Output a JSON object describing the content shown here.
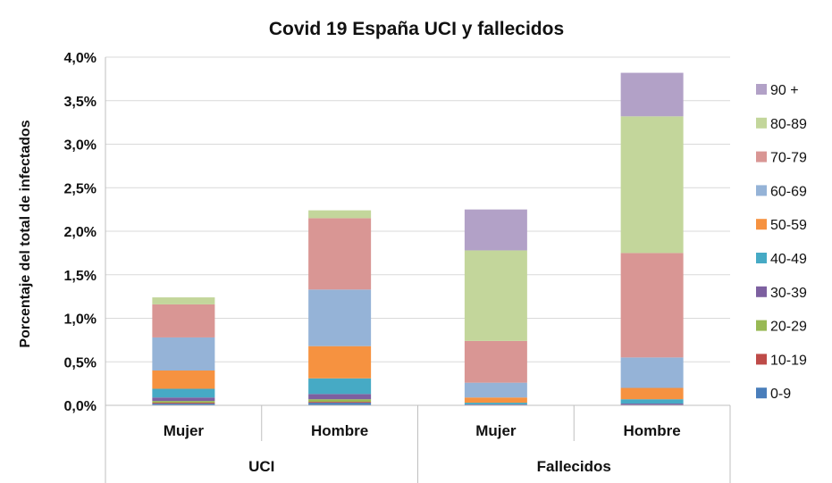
{
  "chart_data": {
    "type": "bar",
    "stacked": true,
    "title": "Covid 19 España UCI y fallecidos",
    "xlabel": "",
    "ylabel": "Porcentaje del total de infectados",
    "ylim": [
      0,
      0.04
    ],
    "yticks": [
      0,
      0.005,
      0.01,
      0.015,
      0.02,
      0.025,
      0.03,
      0.035,
      0.04
    ],
    "ytick_labels": [
      "0,0%",
      "0,5%",
      "1,0%",
      "1,5%",
      "2,0%",
      "2,5%",
      "3,0%",
      "3,5%",
      "4,0%"
    ],
    "grid": "horizontal",
    "legend_position": "right",
    "groups": [
      {
        "label": "UCI",
        "categories": [
          "Mujer",
          "Hombre"
        ]
      },
      {
        "label": "Fallecidos",
        "categories": [
          "Mujer",
          "Hombre"
        ]
      }
    ],
    "categories": [
      "Mujer",
      "Hombre",
      "Mujer",
      "Hombre"
    ],
    "series": [
      {
        "name": "0-9",
        "color": "#4a7ebb",
        "values": [
          0.0002,
          0.0003,
          0.0,
          0.0
        ]
      },
      {
        "name": "10-19",
        "color": "#be4b48",
        "values": [
          0.0001,
          0.0001,
          0.0,
          0.0
        ]
      },
      {
        "name": "20-29",
        "color": "#98b954",
        "values": [
          0.0002,
          0.0003,
          0.0,
          0.0
        ]
      },
      {
        "name": "30-39",
        "color": "#7d60a0",
        "values": [
          0.0004,
          0.0006,
          0.0001,
          0.0002
        ]
      },
      {
        "name": "40-49",
        "color": "#46aac5",
        "values": [
          0.001,
          0.0018,
          0.0002,
          0.0005
        ]
      },
      {
        "name": "50-59",
        "color": "#f69240",
        "values": [
          0.0021,
          0.0037,
          0.0006,
          0.0013
        ]
      },
      {
        "name": "60-69",
        "color": "#95b3d7",
        "values": [
          0.0038,
          0.0065,
          0.0017,
          0.0035
        ]
      },
      {
        "name": "70-79",
        "color": "#d99694",
        "values": [
          0.0038,
          0.0082,
          0.0048,
          0.012
        ]
      },
      {
        "name": "80-89",
        "color": "#c3d69b",
        "values": [
          0.0008,
          0.0009,
          0.0104,
          0.0157
        ]
      },
      {
        "name": "90  +",
        "color": "#b2a1c7",
        "values": [
          0.0,
          0.0,
          0.0047,
          0.005
        ]
      }
    ],
    "gridline_color": "#d9d9d9",
    "axis_color": "#bfbfbf"
  }
}
